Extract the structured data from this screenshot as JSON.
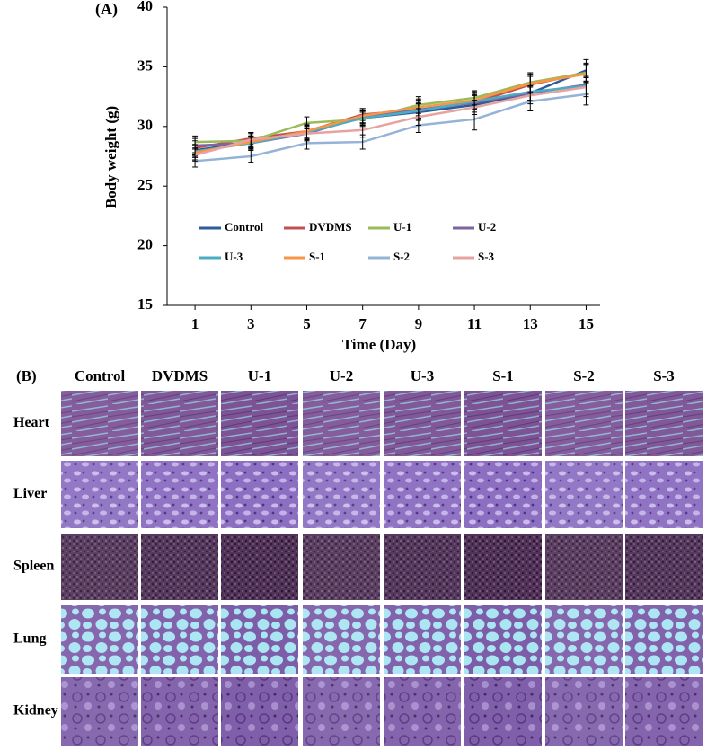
{
  "chart_data": {
    "type": "line",
    "panel_label": "(A)",
    "y_label": "Body weight (g)",
    "x_label": "Time (Day)",
    "x": [
      1,
      3,
      5,
      7,
      9,
      11,
      13,
      15
    ],
    "xlim": [
      0,
      15.5
    ],
    "xticks": [
      1,
      3,
      5,
      7,
      9,
      11,
      13,
      15
    ],
    "ylim": [
      15,
      40
    ],
    "yticks": [
      15,
      20,
      25,
      30,
      35,
      40
    ],
    "series": [
      {
        "name": "Control",
        "color": "#2e5b9a",
        "values": [
          28.0,
          28.7,
          29.6,
          30.7,
          31.2,
          31.8,
          32.8,
          34.7
        ],
        "errors": [
          0.5,
          0.5,
          0.6,
          0.5,
          0.7,
          0.6,
          0.6,
          0.9
        ]
      },
      {
        "name": "DVDMS",
        "color": "#c0504d",
        "values": [
          28.2,
          29.0,
          29.6,
          31.0,
          31.4,
          32.0,
          33.5,
          34.5
        ],
        "errors": [
          0.6,
          0.5,
          0.7,
          0.5,
          0.8,
          0.6,
          0.7,
          0.8
        ]
      },
      {
        "name": "U-1",
        "color": "#9bbb59",
        "values": [
          28.7,
          28.8,
          30.3,
          30.6,
          31.8,
          32.4,
          33.7,
          34.5
        ],
        "errors": [
          0.5,
          0.6,
          0.5,
          0.6,
          0.7,
          0.6,
          0.8,
          0.7
        ]
      },
      {
        "name": "U-2",
        "color": "#7f64a2",
        "values": [
          28.4,
          28.6,
          29.4,
          30.8,
          31.4,
          32.0,
          32.8,
          33.5
        ],
        "errors": [
          0.6,
          0.5,
          0.6,
          0.5,
          0.6,
          0.6,
          0.6,
          0.7
        ]
      },
      {
        "name": "U-3",
        "color": "#4bacc6",
        "values": [
          27.9,
          28.6,
          29.5,
          30.7,
          31.3,
          32.1,
          32.9,
          33.4
        ],
        "errors": [
          0.5,
          0.6,
          0.6,
          0.6,
          0.6,
          0.6,
          0.7,
          0.7
        ]
      },
      {
        "name": "S-1",
        "color": "#f79646",
        "values": [
          27.8,
          28.7,
          29.6,
          30.9,
          31.6,
          32.2,
          33.6,
          34.4
        ],
        "errors": [
          0.6,
          0.5,
          0.6,
          0.6,
          0.7,
          0.7,
          0.8,
          0.8
        ]
      },
      {
        "name": "S-2",
        "color": "#95b3d7",
        "values": [
          27.1,
          27.5,
          28.6,
          28.7,
          30.1,
          30.6,
          32.1,
          32.7
        ],
        "errors": [
          0.5,
          0.5,
          0.5,
          0.6,
          0.6,
          0.9,
          0.8,
          0.9
        ]
      },
      {
        "name": "S-3",
        "color": "#e6a39f",
        "values": [
          27.6,
          28.9,
          29.4,
          29.7,
          30.8,
          31.6,
          32.6,
          33.3
        ],
        "errors": [
          0.5,
          0.6,
          0.6,
          0.6,
          0.7,
          0.6,
          0.7,
          0.8
        ]
      }
    ]
  },
  "panel_b": {
    "label": "(B)",
    "columns": [
      "Control",
      "DVDMS",
      "U-1",
      "U-2",
      "U-3",
      "S-1",
      "S-2",
      "S-3"
    ],
    "rows": [
      "Heart",
      "Liver",
      "Spleen",
      "Lung",
      "Kidney"
    ]
  }
}
